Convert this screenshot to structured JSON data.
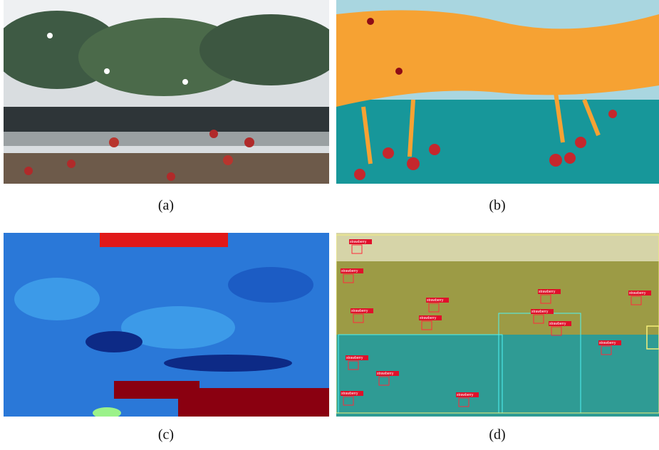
{
  "figure": {
    "panels": [
      {
        "caption": "(a)"
      },
      {
        "caption": "(b)"
      },
      {
        "caption": "(c)"
      },
      {
        "caption": "(d)",
        "detection_labels": [
          "strawberry",
          "strawberry",
          "strawberry",
          "strawberry",
          "strawberry",
          "strawberry",
          "strawberry",
          "strawberry",
          "strawberry",
          "strawberry",
          "strawberry",
          "strawberry",
          "strawberry",
          "strawberry"
        ]
      }
    ]
  }
}
